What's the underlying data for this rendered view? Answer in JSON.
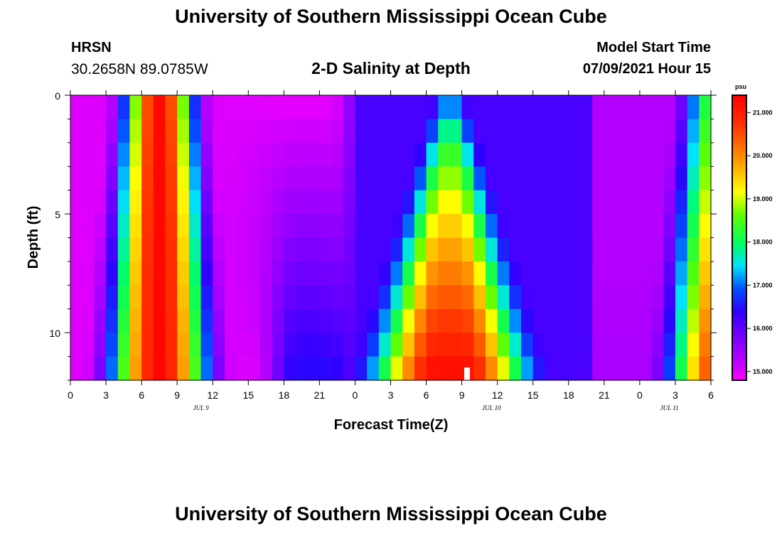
{
  "header": {
    "title": "University of Southern Mississippi Ocean Cube",
    "station": "HRSN",
    "coords": "30.2658N  89.0785W",
    "model_label": "Model Start Time",
    "model_time": "07/09/2021 Hour 15"
  },
  "footer": {
    "title": "University of Southern Mississippi Ocean Cube"
  },
  "chart_data": {
    "type": "heatmap",
    "title": "2-D Salinity at Depth",
    "xlabel": "Forecast Time(Z)",
    "ylabel": "Depth (ft)",
    "x_hours_range": [
      0,
      54
    ],
    "x_tick_step_hours": 3,
    "x_tick_labels": [
      "0",
      "3",
      "6",
      "9",
      "12",
      "15",
      "18",
      "21",
      "0",
      "3",
      "6",
      "9",
      "12",
      "15",
      "18",
      "21",
      "0",
      "3",
      "6"
    ],
    "date_labels": [
      {
        "hour": 11,
        "text": "JUL 9"
      },
      {
        "hour": 35.5,
        "text": "JUL 10"
      },
      {
        "hour": 50.5,
        "text": "JUL 11"
      }
    ],
    "y_range": [
      0,
      12
    ],
    "y_tick_labels": [
      {
        "value": 0,
        "text": "0"
      },
      {
        "value": 5,
        "text": "5"
      },
      {
        "value": 10,
        "text": "10"
      }
    ],
    "depth_levels": 12,
    "time_steps": 54,
    "colorbar": {
      "unit": "psu",
      "min": 14.8,
      "max": 21.4,
      "ticks": [
        "15.000",
        "16.000",
        "17.000",
        "18.000",
        "19.000",
        "20.000",
        "21.000"
      ],
      "tick_values": [
        15,
        16,
        17,
        18,
        19,
        20,
        21
      ]
    },
    "features": [
      {
        "kind": "high",
        "name": "salty band",
        "hours": "6-9",
        "salinity_max": 21.3
      },
      {
        "kind": "low",
        "name": "fresh surface",
        "hour": 20,
        "depth": 0,
        "salinity_min": 14.9
      },
      {
        "kind": "high",
        "name": "bottom salty dome",
        "hour": 32,
        "depth": 12,
        "salinity_max": 21.3
      },
      {
        "kind": "low",
        "name": "fresh",
        "hour": 45,
        "salinity_min": 15.2
      }
    ]
  }
}
